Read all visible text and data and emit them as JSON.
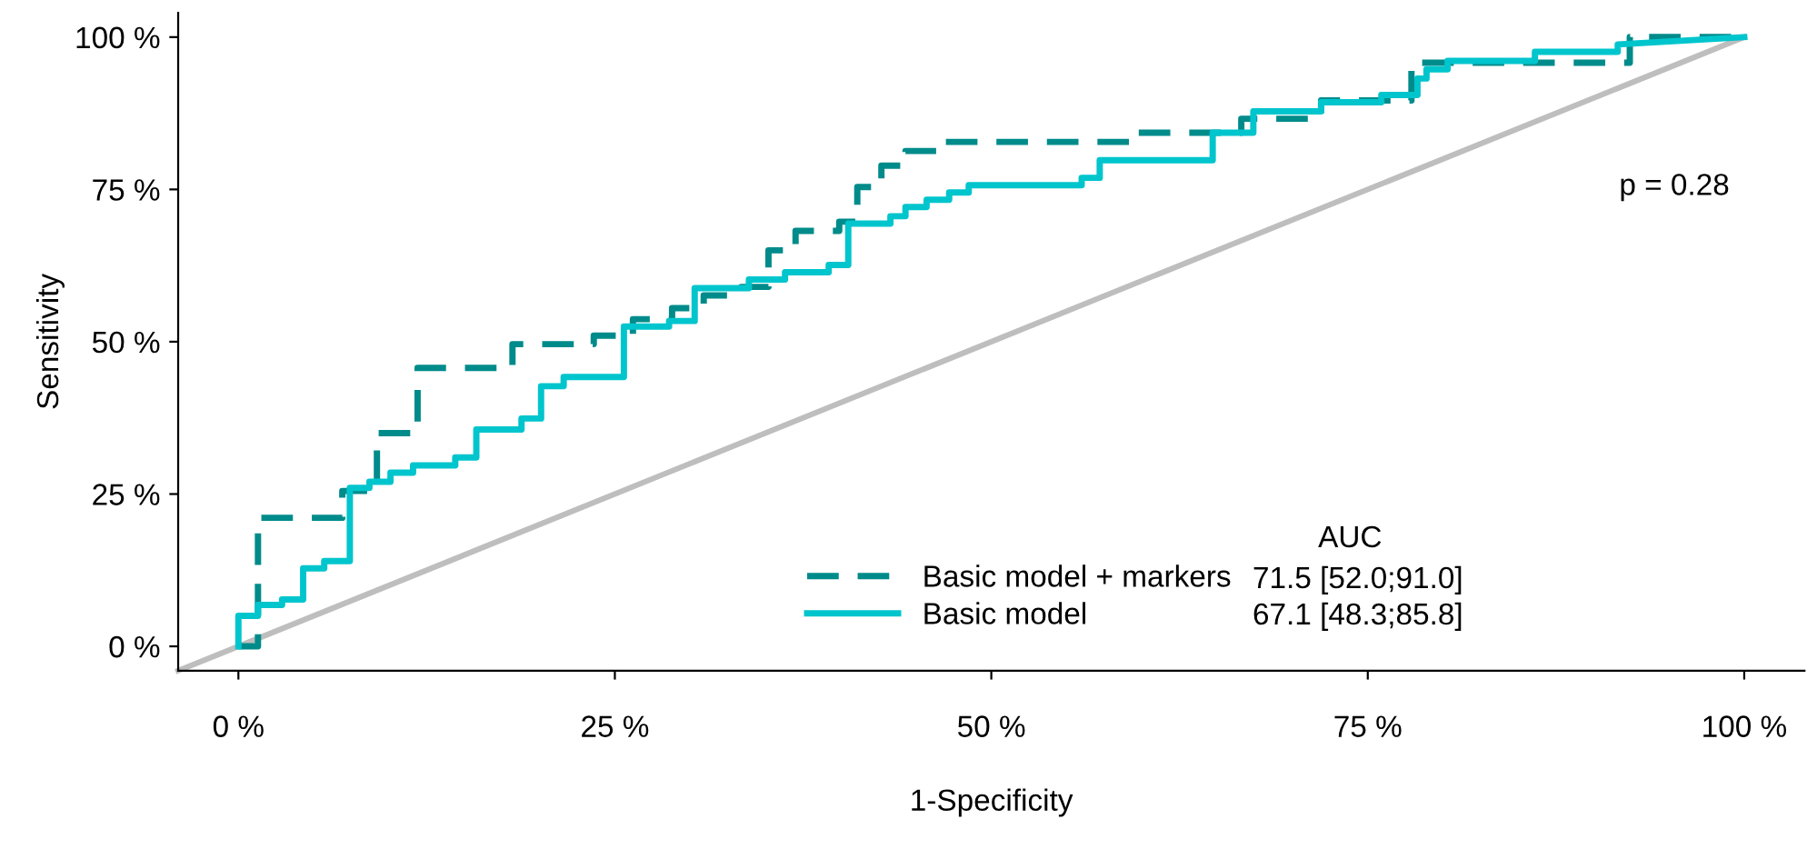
{
  "chart_data": {
    "type": "line",
    "xlabel": "1-Specificity",
    "ylabel": "Sensitivity",
    "xlim": [
      -4,
      104
    ],
    "ylim": [
      -4,
      104
    ],
    "xticks": [
      {
        "value": 0,
        "label": "0 %"
      },
      {
        "value": 25,
        "label": "25 %"
      },
      {
        "value": 50,
        "label": "50 %"
      },
      {
        "value": 75,
        "label": "75 %"
      },
      {
        "value": 100,
        "label": "100 %"
      }
    ],
    "yticks": [
      {
        "value": 0,
        "label": "0 %"
      },
      {
        "value": 25,
        "label": "25 %"
      },
      {
        "value": 50,
        "label": "50 %"
      },
      {
        "value": 75,
        "label": "75 %"
      },
      {
        "value": 100,
        "label": "100 %"
      }
    ],
    "grid": false,
    "legend": "bottom right",
    "legend_title": "AUC",
    "series": [
      {
        "color": "#bebebe",
        "line_style": "solid",
        "x": [
          -4,
          100
        ],
        "values": [
          -4,
          100
        ]
      },
      {
        "name": "Basic model + markers",
        "color": "#008b8b",
        "line_style": "dashed",
        "x": [
          0,
          1.3,
          1.3,
          6.9,
          6.9,
          9.2,
          9.2,
          11.9,
          11.9,
          18.2,
          18.2,
          23.6,
          23.6,
          26.2,
          26.2,
          28.8,
          28.8,
          30.9,
          30.9,
          33.4,
          33.4,
          35.2,
          35.2,
          37.0,
          37.0,
          39.9,
          39.9,
          41.1,
          41.1,
          42.7,
          42.7,
          44.3,
          44.3,
          46.9,
          46.9,
          59.3,
          59.3,
          66.6,
          66.6,
          71.9,
          71.9,
          77.9,
          77.9,
          92.4,
          92.4,
          100
        ],
        "values": [
          0,
          0,
          21.1,
          21.1,
          25.5,
          25.5,
          35,
          35,
          45.7,
          45.7,
          49.6,
          49.6,
          51,
          51,
          53.7,
          53.7,
          55.5,
          55.5,
          57.6,
          57.6,
          59,
          59,
          65,
          65,
          68.2,
          68.2,
          69.7,
          69.7,
          75.4,
          75.4,
          78.9,
          78.9,
          81.3,
          81.3,
          82.8,
          82.8,
          84.3,
          84.3,
          86.6,
          86.6,
          89.6,
          89.6,
          95.8,
          95.8,
          100,
          100
        ]
      },
      {
        "name": "Basic model",
        "color": "#00c5cd",
        "line_style": "solid",
        "x": [
          0,
          0,
          1.3,
          1.3,
          2.9,
          2.9,
          4.3,
          4.3,
          5.7,
          5.7,
          7.4,
          7.4,
          8.7,
          8.7,
          10.1,
          10.1,
          11.6,
          11.6,
          14.4,
          14.4,
          15.8,
          15.8,
          18.8,
          18.8,
          20.1,
          20.1,
          21.6,
          21.6,
          25.6,
          25.6,
          28.6,
          28.6,
          30.3,
          30.3,
          33.9,
          33.9,
          36.3,
          36.3,
          39.2,
          39.2,
          40.5,
          40.5,
          43.3,
          43.3,
          44.3,
          44.3,
          45.7,
          45.7,
          47.2,
          47.2,
          48.5,
          48.5,
          56.0,
          56.0,
          57.2,
          57.2,
          64.7,
          64.7,
          67.4,
          67.4,
          71.9,
          71.9,
          75.9,
          75.9,
          78.3,
          78.3,
          78.9,
          78.9,
          80.3,
          80.3,
          86.1,
          86.1,
          91.6,
          91.6,
          100
        ],
        "values": [
          0,
          5,
          5,
          6.8,
          6.8,
          7.7,
          7.7,
          12.8,
          12.8,
          14,
          14,
          26,
          26,
          27,
          27,
          28.5,
          28.5,
          29.7,
          29.7,
          31,
          31,
          35.6,
          35.6,
          37.4,
          37.4,
          42.7,
          42.7,
          44.2,
          44.2,
          52.5,
          52.5,
          53.4,
          53.4,
          58.8,
          58.8,
          60.2,
          60.2,
          61.4,
          61.4,
          62.6,
          62.6,
          69.4,
          69.4,
          70.6,
          70.6,
          72.1,
          72.1,
          73.3,
          73.3,
          74.5,
          74.5,
          75.7,
          75.7,
          76.9,
          76.9,
          79.8,
          79.8,
          84.3,
          84.3,
          87.8,
          87.8,
          89.3,
          89.3,
          90.5,
          90.5,
          93.2,
          93.2,
          94.7,
          94.7,
          96.1,
          96.1,
          97.6,
          97.6,
          98.8,
          100
        ]
      }
    ],
    "annotations": [
      "71.5 [52.0;91.0]",
      "67.1 [48.3;85.8]",
      "p = 0.28"
    ]
  }
}
